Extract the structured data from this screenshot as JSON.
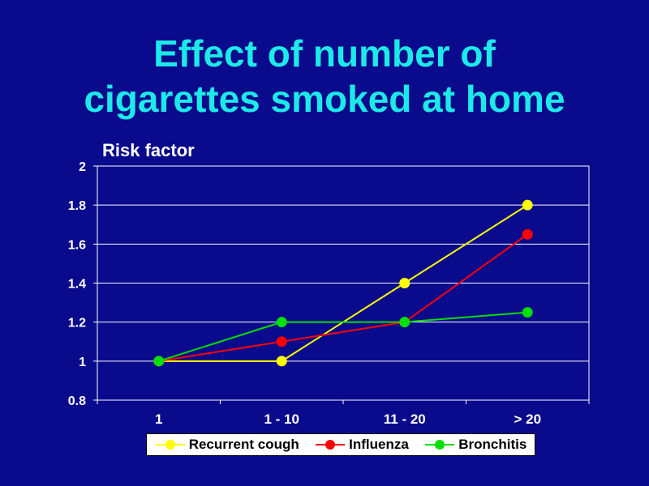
{
  "slide": {
    "title_line1": "Effect of number of",
    "title_line2": "cigarettes smoked at home"
  },
  "chart_data": {
    "type": "line",
    "ylabel": "Risk factor",
    "xlabel": "",
    "categories": [
      "1",
      "1 - 10",
      "11 - 20",
      "> 20"
    ],
    "ylim": [
      0.8,
      2
    ],
    "yticks": [
      "0.8",
      "1",
      "1.2",
      "1.4",
      "1.6",
      "1.8",
      "2"
    ],
    "grid": true,
    "legend_position": "bottom",
    "plot_background": "#0a0a8c",
    "series": [
      {
        "name": "Recurrent cough",
        "color": "#ffff00",
        "values": [
          1.0,
          1.0,
          1.4,
          1.8
        ]
      },
      {
        "name": "Influenza",
        "color": "#ff0000",
        "values": [
          1.0,
          1.1,
          1.2,
          1.65
        ]
      },
      {
        "name": "Bronchitis",
        "color": "#00e000",
        "values": [
          1.0,
          1.2,
          1.2,
          1.25
        ]
      }
    ]
  }
}
